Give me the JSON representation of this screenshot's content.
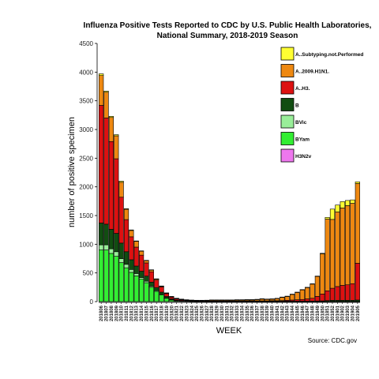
{
  "chart_data": {
    "type": "bar",
    "stacked": true,
    "title_line1": "Influenza Positive Tests Reported to CDC by U.S. Public Health Laboratories,",
    "title_line2": "National Summary, 2018-2019 Season",
    "xlabel": "WEEK",
    "ylabel": "number of positive specimen",
    "caption": "Source: CDC.gov",
    "ylim": [
      0,
      4500
    ],
    "yticks": [
      "0",
      "500",
      "1000",
      "1500",
      "2000",
      "2500",
      "3000",
      "3500",
      "4000",
      "4500"
    ],
    "grid": false,
    "legend_position": "top-right",
    "categories": [
      "201806",
      "201807",
      "201808",
      "201809",
      "201810",
      "201811",
      "201812",
      "201813",
      "201814",
      "201815",
      "201816",
      "201817",
      "201818",
      "201819",
      "201820",
      "201821",
      "201822",
      "201823",
      "201824",
      "201825",
      "201826",
      "201827",
      "201828",
      "201829",
      "201830",
      "201831",
      "201832",
      "201833",
      "201834",
      "201835",
      "201836",
      "201837",
      "201838",
      "201839",
      "201840",
      "201841",
      "201842",
      "201843",
      "201844",
      "201845",
      "201846",
      "201847",
      "201848",
      "201849",
      "201850",
      "201851",
      "201852",
      "201901",
      "201902",
      "201903",
      "201904",
      "201905"
    ],
    "x_tick_labels": [
      "201806",
      "201808",
      "201810",
      "201812",
      "201814",
      "201816",
      "201818",
      "201820",
      "201822",
      "201824",
      "201826",
      "201828",
      "201830",
      "201832",
      "201834",
      "201836",
      "201838",
      "201840",
      "201842",
      "201844",
      "201846",
      "201848",
      "201850",
      "201852",
      "201902",
      "201904"
    ],
    "x_tick_labels_offset": [
      "201807",
      "201809",
      "201811",
      "201813",
      "201815",
      "201817",
      "201819",
      "201821",
      "201823",
      "201825",
      "201827",
      "201829",
      "201831",
      "201833",
      "201835",
      "201837",
      "201839",
      "201841",
      "201843",
      "201845",
      "201847",
      "201849",
      "201851",
      "201901",
      "201903",
      "201905"
    ],
    "series": [
      {
        "name": "BYam",
        "color": "#33ee33",
        "values": [
          900,
          900,
          840,
          790,
          680,
          590,
          510,
          450,
          390,
          330,
          250,
          180,
          120,
          60,
          30,
          15,
          10,
          8,
          5,
          3,
          3,
          2,
          2,
          2,
          2,
          2,
          2,
          2,
          2,
          2,
          2,
          2,
          2,
          2,
          2,
          2,
          2,
          2,
          2,
          2,
          2,
          2,
          2,
          2,
          2,
          2,
          2,
          2,
          2,
          2,
          2,
          2
        ]
      },
      {
        "name": "BVic",
        "color": "#99ee99",
        "values": [
          90,
          90,
          80,
          80,
          70,
          60,
          50,
          40,
          30,
          25,
          20,
          15,
          10,
          5,
          3,
          2,
          2,
          1,
          1,
          1,
          1,
          1,
          1,
          1,
          1,
          1,
          1,
          1,
          1,
          1,
          1,
          1,
          1,
          1,
          1,
          1,
          1,
          1,
          1,
          1,
          1,
          1,
          1,
          1,
          1,
          1,
          1,
          1,
          1,
          1,
          1,
          1
        ]
      },
      {
        "name": "B",
        "color": "#114d11",
        "values": [
          380,
          360,
          340,
          320,
          270,
          220,
          170,
          130,
          110,
          90,
          70,
          50,
          35,
          25,
          15,
          10,
          8,
          6,
          5,
          5,
          5,
          5,
          5,
          5,
          5,
          5,
          5,
          5,
          5,
          5,
          5,
          5,
          5,
          5,
          5,
          5,
          5,
          5,
          5,
          5,
          5,
          5,
          6,
          8,
          10,
          15,
          20,
          20,
          20,
          20,
          20,
          25
        ]
      },
      {
        "name": "A..H3.",
        "color": "#dd1111",
        "values": [
          2050,
          1850,
          1530,
          1300,
          800,
          560,
          400,
          330,
          280,
          230,
          180,
          130,
          90,
          50,
          30,
          20,
          12,
          8,
          6,
          5,
          5,
          5,
          5,
          5,
          5,
          5,
          5,
          5,
          5,
          5,
          5,
          5,
          5,
          5,
          8,
          8,
          10,
          15,
          20,
          25,
          30,
          40,
          50,
          80,
          120,
          170,
          210,
          240,
          260,
          270,
          290,
          640
        ]
      },
      {
        "name": "A..2009.H1N1.",
        "color": "#ee8811",
        "values": [
          520,
          450,
          420,
          400,
          260,
          180,
          110,
          100,
          70,
          40,
          30,
          20,
          15,
          10,
          10,
          10,
          10,
          8,
          8,
          8,
          8,
          10,
          15,
          15,
          15,
          15,
          15,
          18,
          18,
          20,
          20,
          25,
          35,
          30,
          30,
          40,
          60,
          70,
          100,
          130,
          170,
          200,
          250,
          350,
          700,
          1250,
          1200,
          1300,
          1350,
          1380,
          1400,
          1390
        ]
      },
      {
        "name": "A..Subtyping.not.Performed",
        "color": "#ffff33",
        "values": [
          30,
          20,
          20,
          20,
          20,
          10,
          10,
          8,
          5,
          5,
          5,
          3,
          3,
          2,
          2,
          2,
          2,
          2,
          2,
          2,
          2,
          2,
          2,
          2,
          2,
          2,
          2,
          2,
          2,
          2,
          2,
          2,
          2,
          2,
          2,
          2,
          2,
          2,
          2,
          2,
          2,
          2,
          2,
          4,
          10,
          30,
          180,
          120,
          110,
          90,
          60,
          30
        ]
      },
      {
        "name": "H3N2v",
        "color": "#ee77ee",
        "values": [
          0,
          0,
          0,
          0,
          0,
          0,
          0,
          0,
          0,
          0,
          0,
          0,
          0,
          0,
          0,
          0,
          0,
          0,
          0,
          0,
          0,
          0,
          0,
          0,
          0,
          0,
          0,
          0,
          0,
          0,
          0,
          0,
          0,
          0,
          0,
          0,
          0,
          0,
          0,
          0,
          0,
          0,
          0,
          0,
          0,
          0,
          0,
          0,
          0,
          0,
          0,
          0
        ]
      }
    ],
    "legend_order": [
      "A..Subtyping.not.Performed",
      "A..2009.H1N1.",
      "A..H3.",
      "B",
      "BVic",
      "BYam",
      "H3N2v"
    ]
  }
}
